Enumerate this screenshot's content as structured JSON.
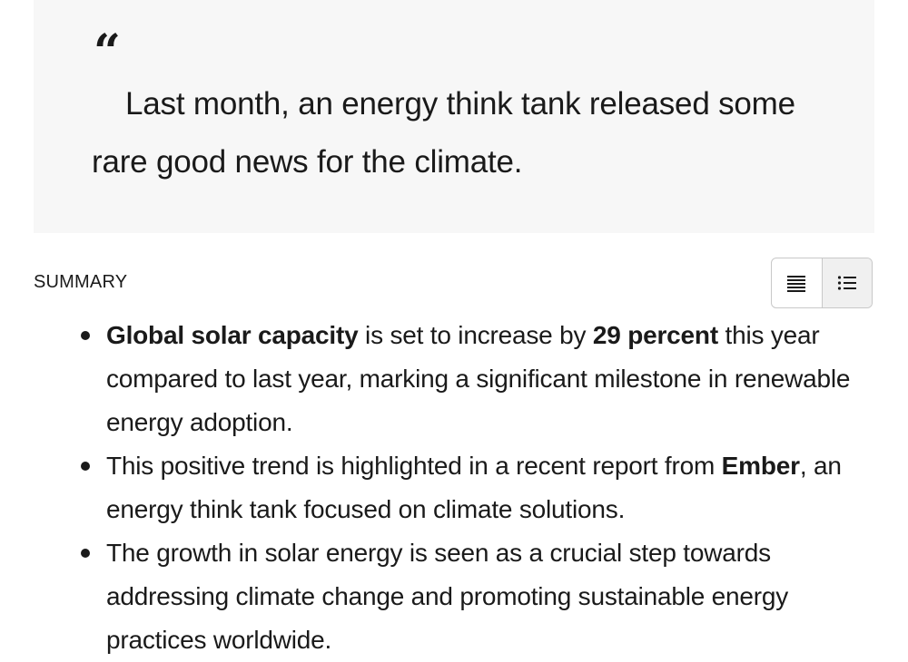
{
  "quote": {
    "mark": "“",
    "text": "Last month, an energy think tank released some rare good news for the climate."
  },
  "summary": {
    "label": "SUMMARY",
    "view_toggle": {
      "paragraph_icon": "paragraph-view-icon",
      "list_icon": "list-view-icon",
      "selected": "list"
    },
    "bullets": [
      {
        "bold_1": "Global solar capacity",
        "text_1": " is set to increase by ",
        "bold_2": "29 percent",
        "text_2": " this year compared to last year, marking a significant milestone in renewable energy adoption."
      },
      {
        "text_1": "This positive trend is highlighted in a recent report from ",
        "bold_1": "Ember",
        "text_2": ", an energy think tank focused on climate solutions."
      },
      {
        "text_1": "The growth in solar energy is seen as a crucial step towards addressing climate change and promoting sustainable energy practices worldwide."
      }
    ]
  }
}
